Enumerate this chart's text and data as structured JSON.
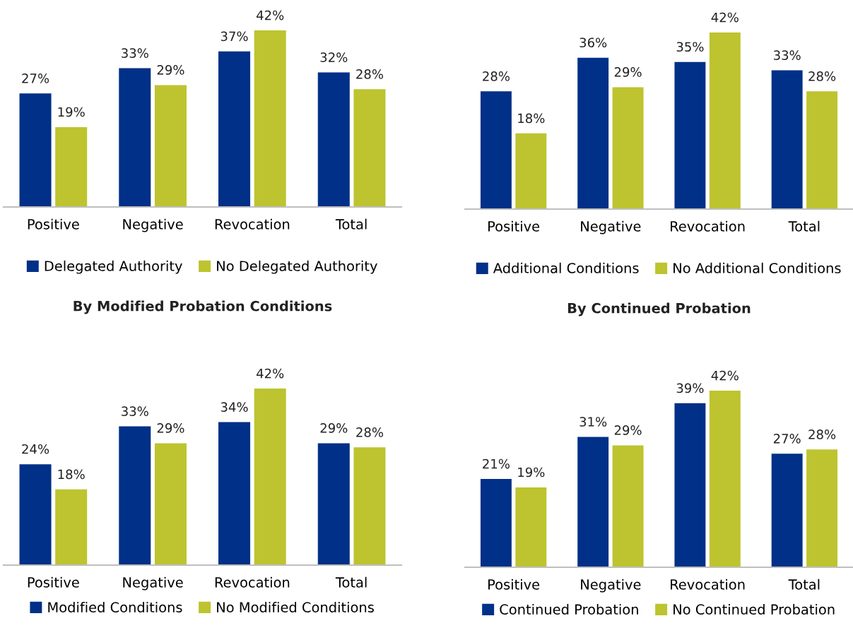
{
  "chart_data": [
    {
      "type": "bar",
      "categories": [
        "Positive",
        "Negative",
        "Revocation",
        "Total"
      ],
      "legend": "bottom",
      "series": [
        {
          "name": "Delegated Authority",
          "color": "#003087",
          "values": [
            27,
            33,
            37,
            32
          ],
          "value_labels": [
            "27%",
            "33%",
            "37%",
            "32%"
          ]
        },
        {
          "name": "No Delegated Authority",
          "color": "#bdc42f",
          "values": [
            19,
            29,
            42,
            28
          ],
          "value_labels": [
            "19%",
            "29%",
            "42%",
            "28%"
          ]
        }
      ]
    },
    {
      "type": "bar",
      "categories": [
        "Positive",
        "Negative",
        "Revocation",
        "Total"
      ],
      "legend": "bottom",
      "series": [
        {
          "name": "Additional Conditions",
          "color": "#003087",
          "values": [
            28,
            36,
            35,
            33
          ],
          "value_labels": [
            "28%",
            "36%",
            "35%",
            "33%"
          ]
        },
        {
          "name": "No Additional Conditions",
          "color": "#bdc42f",
          "values": [
            18,
            29,
            42,
            28
          ],
          "value_labels": [
            "18%",
            "29%",
            "42%",
            "28%"
          ]
        }
      ]
    },
    {
      "type": "bar",
      "title": "By Modified Probation Conditions",
      "categories": [
        "Positive",
        "Negative",
        "Revocation",
        "Total"
      ],
      "legend": "bottom",
      "series": [
        {
          "name": "Modified Conditions",
          "color": "#003087",
          "values": [
            24,
            33,
            34,
            29
          ],
          "value_labels": [
            "24%",
            "33%",
            "34%",
            "29%"
          ]
        },
        {
          "name": "No Modified Conditions",
          "color": "#bdc42f",
          "values": [
            18,
            29,
            42,
            28
          ],
          "value_labels": [
            "18%",
            "29%",
            "42%",
            "28%"
          ]
        }
      ]
    },
    {
      "type": "bar",
      "title": "By Continued Probation",
      "categories": [
        "Positive",
        "Negative",
        "Revocation",
        "Total"
      ],
      "legend": "bottom",
      "series": [
        {
          "name": "Continued Probation",
          "color": "#003087",
          "values": [
            21,
            31,
            39,
            27
          ],
          "value_labels": [
            "21%",
            "31%",
            "39%",
            "27%"
          ]
        },
        {
          "name": "No Continued Probation",
          "color": "#bdc42f",
          "values": [
            19,
            29,
            42,
            28
          ],
          "value_labels": [
            "19%",
            "29%",
            "42%",
            "28%"
          ]
        }
      ]
    }
  ]
}
